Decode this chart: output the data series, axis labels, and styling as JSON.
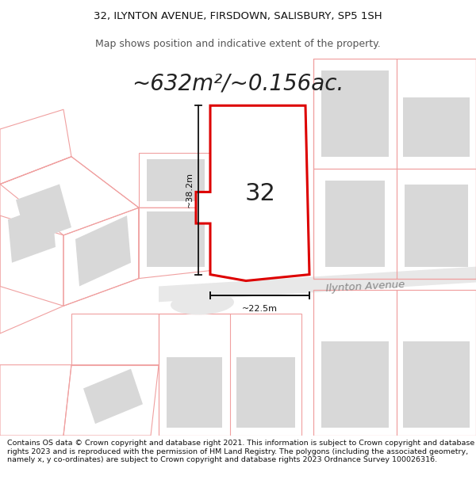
{
  "title_line1": "32, ILYNTON AVENUE, FIRSDOWN, SALISBURY, SP5 1SH",
  "title_line2": "Map shows position and indicative extent of the property.",
  "area_text": "~632m²/~0.156ac.",
  "plot_number": "32",
  "dim_vertical": "~38.2m",
  "dim_horizontal": "~22.5m",
  "street_label": "Ilynton Avenue",
  "copyright_text": "Contains OS data © Crown copyright and database right 2021. This information is subject to Crown copyright and database rights 2023 and is reproduced with the permission of HM Land Registry. The polygons (including the associated geometry, namely x, y co-ordinates) are subject to Crown copyright and database rights 2023 Ordnance Survey 100026316.",
  "bg_color": "#ffffff",
  "map_bg_color": "#ffffff",
  "plot_outline_color": "#f0a0a0",
  "highlight_color": "#dd0000",
  "building_fill": "#d8d8d8",
  "text_dark": "#111111",
  "text_mid": "#555555",
  "title_fontsize": 9.5,
  "subtitle_fontsize": 9,
  "area_fontsize": 20,
  "label_fontsize": 8,
  "copyright_fontsize": 6.8,
  "number_fontsize": 22
}
